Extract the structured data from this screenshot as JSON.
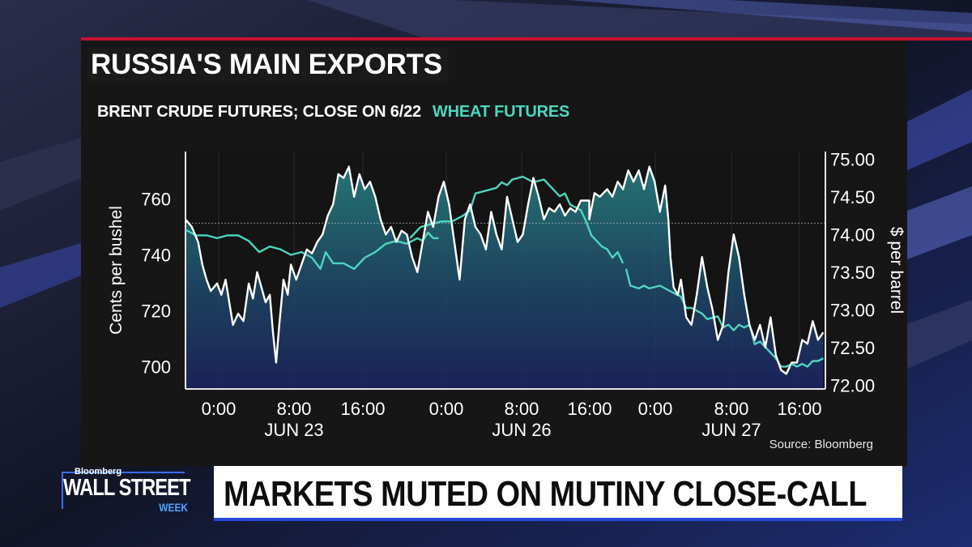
{
  "title": "RUSSIA'S MAIN EXPORTS",
  "subtitle_crude": "BRENT CRUDE FUTURES; CLOSE ON 6/22",
  "subtitle_wheat": "WHEAT FUTURES",
  "source": "Source: Bloomberg",
  "brand": {
    "network": "Bloomberg",
    "show": "WALL STREET",
    "show_suffix": "WEEK"
  },
  "headline": "MARKETS MUTED ON MUTINY CLOSE-CALL",
  "colors": {
    "crude_line": "#ffffff",
    "wheat_line": "#4bd6c0",
    "accent_red": "#c8102e",
    "accent_blue": "#2748d6"
  },
  "chart_data": {
    "type": "line",
    "x_tick_labels": [
      "0:00",
      "8:00",
      "16:00",
      "0:00",
      "8:00",
      "16:00",
      "0:00",
      "8:00",
      "16:00"
    ],
    "x_date_labels": [
      "JUN 23",
      "JUN 26",
      "JUN 27"
    ],
    "x_sessions": [
      {
        "date": "JUN 23",
        "start_hour": -2,
        "end_hour": 21
      },
      {
        "date": "JUN 26",
        "start_hour": -2,
        "end_hour": 18
      },
      {
        "date": "JUN 27",
        "start_hour": -2,
        "end_hour": 18
      }
    ],
    "y_left": {
      "label": "Cents per bushel",
      "ticks": [
        700,
        720,
        740,
        760
      ],
      "range": [
        692,
        777
      ]
    },
    "y_right": {
      "label": "$ per barrel",
      "ticks": [
        "72.00",
        "72.50",
        "73.00",
        "73.50",
        "74.00",
        "74.50",
        "75.00"
      ],
      "range": [
        71.95,
        75.1
      ]
    },
    "reference_line": {
      "axis": "right",
      "value": 74.15,
      "label": "CLOSE ON 6/22"
    },
    "series": [
      {
        "name": "BRENT CRUDE FUTURES",
        "axis": "right",
        "fill": "area",
        "points": [
          [
            0,
            74.2
          ],
          [
            0.6,
            74.1
          ],
          [
            1.2,
            73.9
          ],
          [
            1.6,
            73.6
          ],
          [
            2,
            73.4
          ],
          [
            2.4,
            73.25
          ],
          [
            3,
            73.35
          ],
          [
            3.4,
            73.2
          ],
          [
            3.8,
            73.4
          ],
          [
            4.5,
            72.8
          ],
          [
            5,
            72.95
          ],
          [
            5.5,
            72.85
          ],
          [
            6,
            73.35
          ],
          [
            6.4,
            73.15
          ],
          [
            6.8,
            73.5
          ],
          [
            7.2,
            73.3
          ],
          [
            7.6,
            73.1
          ],
          [
            8,
            73.2
          ],
          [
            8.3,
            72.7
          ],
          [
            8.6,
            72.3
          ],
          [
            8.9,
            72.8
          ],
          [
            9.3,
            73.4
          ],
          [
            9.7,
            73.2
          ],
          [
            10,
            73.6
          ],
          [
            10.5,
            73.4
          ],
          [
            11,
            73.6
          ],
          [
            11.5,
            73.8
          ],
          [
            12,
            73.75
          ],
          [
            12.5,
            73.9
          ],
          [
            13,
            74.0
          ],
          [
            13.5,
            74.25
          ],
          [
            14,
            74.4
          ],
          [
            14.5,
            74.8
          ],
          [
            15,
            74.75
          ],
          [
            15.5,
            74.9
          ],
          [
            16,
            74.5
          ],
          [
            16.5,
            74.8
          ],
          [
            17,
            74.6
          ],
          [
            17.5,
            74.7
          ],
          [
            18,
            74.5
          ],
          [
            18.5,
            74.2
          ],
          [
            19,
            74.0
          ],
          [
            19.5,
            74.1
          ],
          [
            20,
            73.9
          ],
          [
            20.5,
            74.05
          ],
          [
            21,
            74.0
          ],
          [
            21.5,
            73.7
          ],
          [
            22,
            73.5
          ],
          [
            22.5,
            73.9
          ],
          [
            23,
            74.3
          ],
          [
            23.5,
            74.1
          ],
          [
            24,
            74.5
          ],
          [
            24.5,
            74.7
          ],
          [
            25,
            74.4
          ],
          [
            25.5,
            73.9
          ],
          [
            26,
            73.4
          ],
          [
            26.5,
            74.2
          ],
          [
            27,
            74.4
          ],
          [
            27.5,
            74.1
          ],
          [
            28,
            74.0
          ],
          [
            28.5,
            73.8
          ],
          [
            29,
            74.3
          ],
          [
            29.5,
            74.0
          ],
          [
            30,
            73.8
          ],
          [
            30.5,
            74.5
          ],
          [
            31,
            74.2
          ],
          [
            31.5,
            73.9
          ],
          [
            32,
            74.0
          ],
          [
            32.5,
            74.4
          ],
          [
            33,
            74.75
          ],
          [
            33.5,
            74.5
          ],
          [
            34,
            74.2
          ],
          [
            34.5,
            74.35
          ],
          [
            35,
            74.3
          ],
          [
            35.5,
            74.4
          ],
          [
            36,
            74.25
          ],
          [
            36.5,
            74.35
          ],
          [
            37,
            74.3
          ],
          [
            37.5,
            74.45
          ],
          [
            38.3,
            74.45
          ],
          [
            38.3,
            74.2
          ],
          [
            38.8,
            74.55
          ],
          [
            39.3,
            74.5
          ],
          [
            40,
            74.6
          ],
          [
            40.5,
            74.5
          ],
          [
            41,
            74.7
          ],
          [
            41.5,
            74.6
          ],
          [
            42,
            74.85
          ],
          [
            42.5,
            74.7
          ],
          [
            43,
            74.85
          ],
          [
            43.5,
            74.6
          ],
          [
            44,
            74.9
          ],
          [
            44.5,
            74.7
          ],
          [
            45,
            74.3
          ],
          [
            45.5,
            74.65
          ],
          [
            45.8,
            74.2
          ],
          [
            46,
            73.7
          ],
          [
            46.3,
            73.3
          ],
          [
            46.7,
            73.2
          ],
          [
            47,
            73.4
          ],
          [
            47.5,
            72.9
          ],
          [
            48,
            72.8
          ],
          [
            48.5,
            73.2
          ],
          [
            49,
            73.7
          ],
          [
            49.5,
            73.3
          ],
          [
            50,
            73.0
          ],
          [
            50.5,
            72.6
          ],
          [
            51,
            72.8
          ],
          [
            51.5,
            73.5
          ],
          [
            52,
            74.0
          ],
          [
            52.5,
            73.7
          ],
          [
            53,
            73.2
          ],
          [
            53.5,
            72.8
          ],
          [
            54,
            72.6
          ],
          [
            54.5,
            72.8
          ],
          [
            55,
            72.5
          ],
          [
            55.5,
            72.9
          ],
          [
            56,
            72.4
          ],
          [
            56.5,
            72.2
          ],
          [
            57,
            72.15
          ],
          [
            57.5,
            72.3
          ],
          [
            58,
            72.3
          ],
          [
            58.5,
            72.6
          ],
          [
            59,
            72.55
          ],
          [
            59.5,
            72.85
          ],
          [
            60,
            72.6
          ],
          [
            60.5,
            72.7
          ]
        ]
      },
      {
        "name": "WHEAT FUTURES",
        "axis": "left",
        "segments": [
          [
            [
              0,
              749
            ],
            [
              1,
              747
            ],
            [
              2,
              747
            ],
            [
              3,
              746
            ],
            [
              4,
              747
            ],
            [
              5,
              747
            ],
            [
              6,
              745
            ],
            [
              7,
              741
            ],
            [
              8,
              743
            ],
            [
              9,
              742
            ],
            [
              10,
              740
            ],
            [
              11,
              741
            ],
            [
              12,
              739
            ],
            [
              12.8,
              735
            ],
            [
              13.3,
              741
            ],
            [
              14,
              737
            ],
            [
              15,
              737
            ],
            [
              16,
              735
            ],
            [
              17,
              739
            ],
            [
              18,
              741
            ],
            [
              19,
              744
            ],
            [
              20,
              745
            ],
            [
              21,
              744
            ],
            [
              22,
              746
            ],
            [
              22.5,
              745
            ],
            [
              23,
              748
            ],
            [
              23.5,
              746
            ],
            [
              24,
              746
            ]
          ],
          [
            [
              21.3,
              746
            ],
            [
              22.3,
              750
            ],
            [
              23.3,
              751
            ],
            [
              24.3,
              752
            ],
            [
              25.3,
              752
            ],
            [
              26.3,
              754
            ],
            [
              27,
              756
            ],
            [
              27.5,
              762
            ],
            [
              28.5,
              763
            ],
            [
              29.5,
              764
            ],
            [
              30,
              766
            ],
            [
              30.5,
              765
            ],
            [
              31,
              767
            ],
            [
              32,
              768
            ],
            [
              33,
              766
            ],
            [
              34,
              767
            ],
            [
              35,
              763
            ],
            [
              35.5,
              761
            ],
            [
              36,
              762
            ],
            [
              36.5,
              758
            ],
            [
              37,
              757
            ],
            [
              37.5,
              756
            ],
            [
              38,
              752
            ],
            [
              38.5,
              747
            ],
            [
              39,
              745
            ],
            [
              39.5,
              743
            ],
            [
              40,
              742
            ],
            [
              40.5,
              739
            ],
            [
              41,
              741
            ],
            [
              41.5,
              737
            ]
          ],
          [
            [
              41.8,
              735
            ],
            [
              42.2,
              729
            ],
            [
              43,
              728
            ],
            [
              43.5,
              729
            ],
            [
              44,
              728
            ],
            [
              45,
              729
            ],
            [
              46,
              727
            ],
            [
              47,
              725
            ],
            [
              47.5,
              721
            ],
            [
              48,
              721
            ],
            [
              49,
              719
            ],
            [
              49.5,
              717
            ],
            [
              50.5,
              718
            ],
            [
              51,
              714
            ],
            [
              51.5,
              715
            ],
            [
              52,
              713
            ],
            [
              52.5,
              715
            ],
            [
              53,
              714
            ],
            [
              53.5,
              715
            ],
            [
              54,
              708
            ],
            [
              54.5,
              709
            ],
            [
              55,
              707
            ],
            [
              55.5,
              705
            ],
            [
              56,
              703
            ],
            [
              56.5,
              700
            ],
            [
              57,
              700
            ],
            [
              57.5,
              701
            ],
            [
              58,
              700
            ],
            [
              58.5,
              701
            ],
            [
              59,
              700
            ],
            [
              59.5,
              702
            ],
            [
              60,
              702
            ],
            [
              60.5,
              703
            ]
          ]
        ]
      }
    ]
  }
}
